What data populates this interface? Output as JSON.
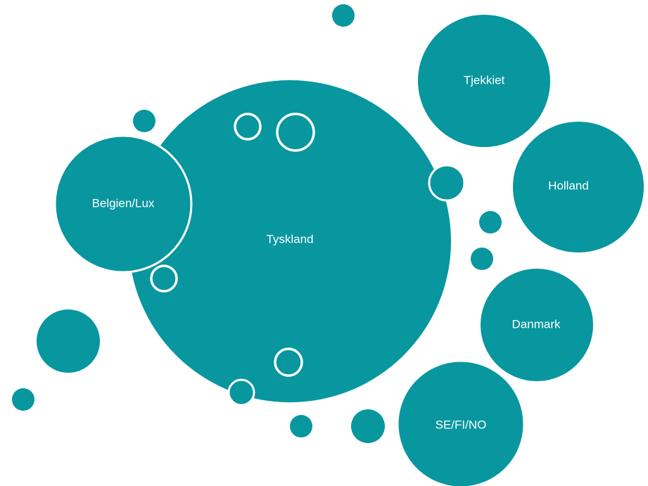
{
  "nodes": [
    {
      "label": "Tyskland"
    },
    {
      "label": "Belgien/Lux"
    },
    {
      "label": "Tjekkiet"
    },
    {
      "label": "Holland"
    },
    {
      "label": "Danmark"
    },
    {
      "label": "SE/FI/NO"
    }
  ]
}
